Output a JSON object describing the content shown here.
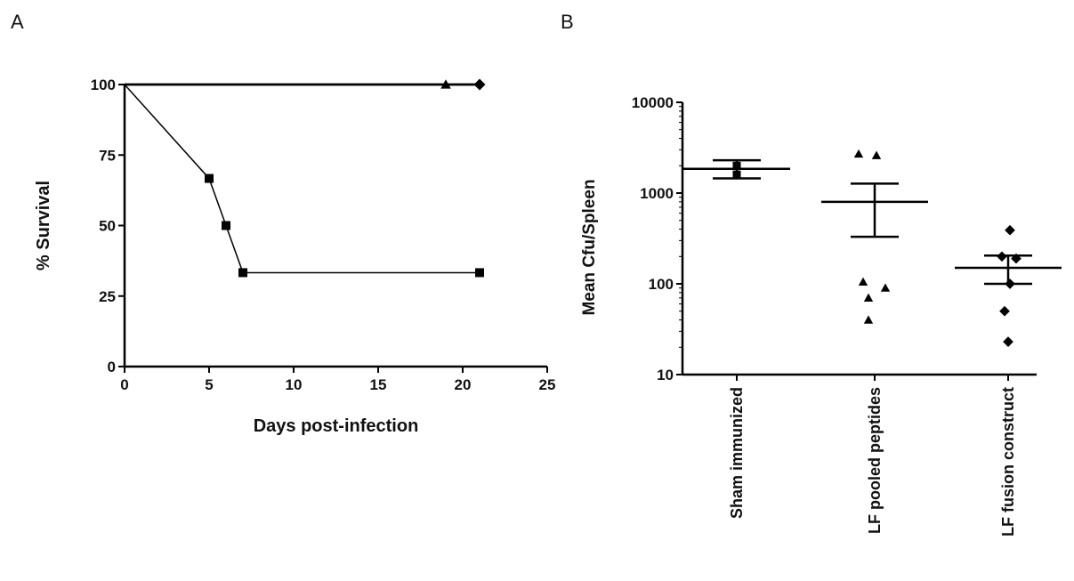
{
  "panels": {
    "a": "A",
    "b": "B"
  },
  "chart_data": [
    {
      "type": "line",
      "panel": "A",
      "xlabel": "Days post-infection",
      "ylabel": "% Survival",
      "xlim": [
        0,
        25
      ],
      "ylim": [
        0,
        100
      ],
      "xticks": [
        0,
        5,
        10,
        15,
        20,
        25
      ],
      "yticks": [
        0,
        25,
        50,
        75,
        100
      ],
      "grid": false,
      "series": [
        {
          "marker": "triangle",
          "x": [
            0,
            19,
            21
          ],
          "y": [
            100,
            100,
            100
          ],
          "marker_x": [
            19
          ],
          "marker_y": [
            100
          ]
        },
        {
          "marker": "diamond",
          "x": [
            0,
            21
          ],
          "y": [
            100,
            100
          ],
          "marker_x": [
            21
          ],
          "marker_y": [
            100
          ]
        },
        {
          "marker": "square",
          "x": [
            0,
            5,
            6,
            7,
            21
          ],
          "y": [
            100,
            66.7,
            50,
            33.3,
            33.3
          ],
          "marker_x": [
            5,
            6,
            7,
            21
          ],
          "marker_y": [
            66.7,
            50,
            33.3,
            33.3
          ]
        }
      ]
    },
    {
      "type": "scatter",
      "panel": "B",
      "ylabel": "Mean Cfu/Spleen",
      "yscale": "log",
      "ylim": [
        10,
        10000
      ],
      "yticks": [
        10,
        100,
        1000,
        10000
      ],
      "grid": false,
      "categories": [
        "Sham immunized",
        "LF pooled peptides",
        "LF fusion construct"
      ],
      "groups": [
        {
          "category": "Sham immunized",
          "marker": "square",
          "values": [
            2000,
            1600
          ],
          "mean": 1850,
          "sem_low": 1450,
          "sem_high": 2300
        },
        {
          "category": "LF pooled peptides",
          "marker": "triangle",
          "values": [
            2700,
            2600,
            105,
            90,
            70,
            40
          ],
          "mean": 800,
          "sem_low": 330,
          "sem_high": 1270
        },
        {
          "category": "LF fusion construct",
          "marker": "diamond",
          "values": [
            390,
            200,
            190,
            100,
            50,
            23
          ],
          "mean": 150,
          "sem_low": 100,
          "sem_high": 205
        }
      ]
    }
  ]
}
